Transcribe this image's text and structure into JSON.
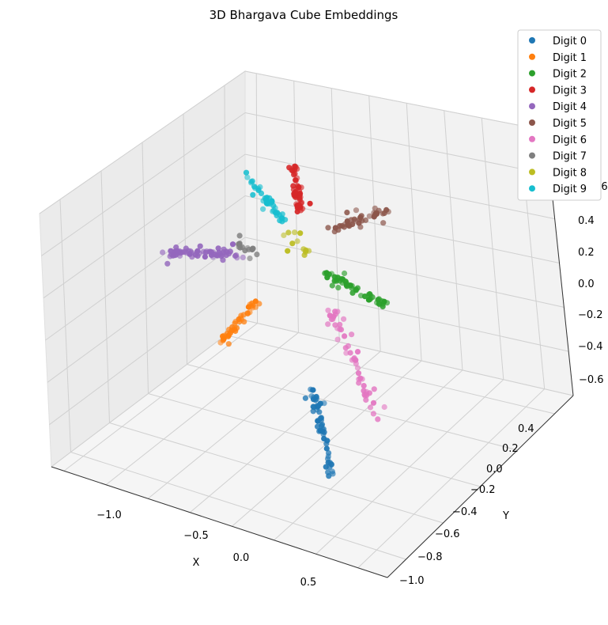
{
  "chart_data": {
    "type": "scatter",
    "projection": "3d",
    "title": "3D Bhargava Cube Embeddings",
    "xlabel": "X",
    "ylabel": "Y",
    "zlabel": "",
    "xlim": [
      -1.35,
      0.85
    ],
    "ylim": [
      -1.1,
      0.5
    ],
    "zlim": [
      -0.7,
      0.6
    ],
    "x_ticks": [
      "−1.0",
      "−0.5",
      "0.0",
      "0.5"
    ],
    "y_ticks": [
      "−1.0",
      "−0.8",
      "−0.6",
      "−0.4",
      "−0.2",
      "0.0",
      "0.2",
      "0.4"
    ],
    "z_ticks": [
      "−0.6",
      "−0.4",
      "−0.2",
      "0.0",
      "0.2",
      "0.4",
      "0.6"
    ],
    "grid": true,
    "legend_position": "top-right",
    "series": [
      {
        "name": "Digit 0",
        "color": "#1f77b4",
        "x_range": [
          0.45,
          0.65
        ],
        "y_range": [
          -0.85,
          -0.55
        ],
        "z_range": [
          -0.65,
          -0.25
        ]
      },
      {
        "name": "Digit 1",
        "color": "#ff7f0e",
        "x_range": [
          -0.45,
          -0.2
        ],
        "y_range": [
          -0.3,
          0.0
        ],
        "z_range": [
          -0.35,
          -0.1
        ]
      },
      {
        "name": "Digit 2",
        "color": "#2ca02c",
        "x_range": [
          0.15,
          0.55
        ],
        "y_range": [
          -0.1,
          0.2
        ],
        "z_range": [
          -0.1,
          0.15
        ]
      },
      {
        "name": "Digit 3",
        "color": "#d62728",
        "x_range": [
          -0.3,
          -0.15
        ],
        "y_range": [
          0.1,
          0.3
        ],
        "z_range": [
          0.35,
          0.6
        ]
      },
      {
        "name": "Digit 4",
        "color": "#9467bd",
        "x_range": [
          -1.2,
          -0.65
        ],
        "y_range": [
          -0.05,
          0.1
        ],
        "z_range": [
          0.1,
          0.25
        ]
      },
      {
        "name": "Digit 5",
        "color": "#8c564b",
        "x_range": [
          -0.1,
          0.4
        ],
        "y_range": [
          0.1,
          0.35
        ],
        "z_range": [
          0.2,
          0.35
        ]
      },
      {
        "name": "Digit 6",
        "color": "#e377c2",
        "x_range": [
          0.4,
          0.75
        ],
        "y_range": [
          -0.55,
          -0.3
        ],
        "z_range": [
          -0.4,
          -0.05
        ]
      },
      {
        "name": "Digit 7",
        "color": "#7f7f7f",
        "x_range": [
          -0.75,
          -0.55
        ],
        "y_range": [
          -0.05,
          0.1
        ],
        "z_range": [
          0.05,
          0.25
        ]
      },
      {
        "name": "Digit 8",
        "color": "#bcbd22",
        "x_range": [
          -0.35,
          -0.15
        ],
        "y_range": [
          0.0,
          0.15
        ],
        "z_range": [
          0.1,
          0.25
        ]
      },
      {
        "name": "Digit 9",
        "color": "#17becf",
        "x_range": [
          -0.65,
          -0.4
        ],
        "y_range": [
          0.05,
          0.3
        ],
        "z_range": [
          0.35,
          0.55
        ]
      }
    ]
  }
}
